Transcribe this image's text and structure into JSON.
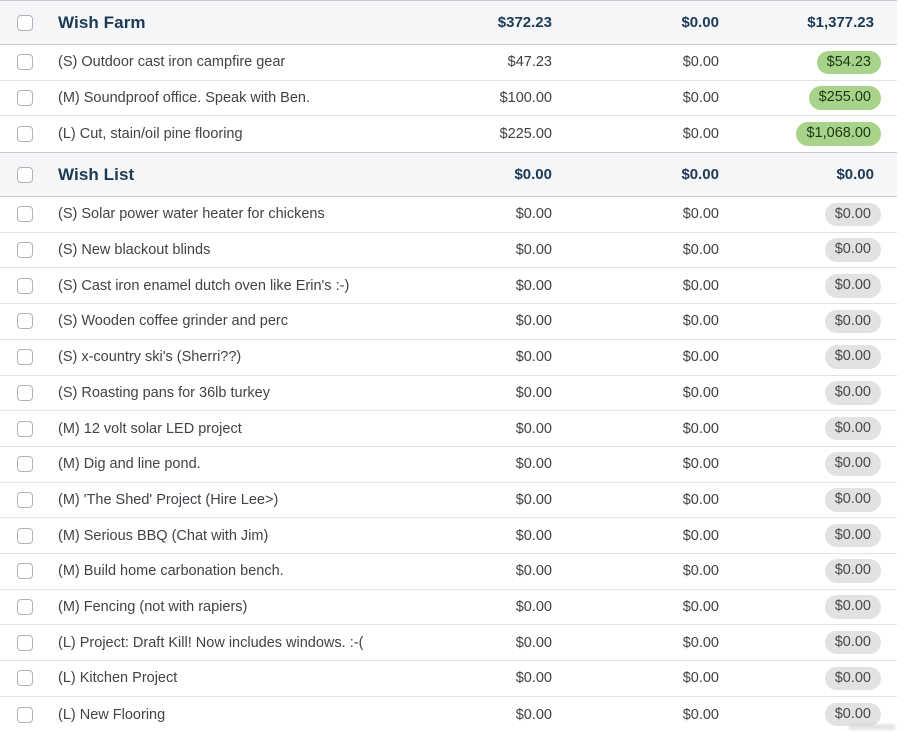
{
  "icons": {
    "collapse_arrow": "▼"
  },
  "colors": {
    "group_header_bg": "#f5f6f8",
    "group_header_text": "#1d3a55",
    "row_text": "#404347",
    "amount_text": "#3e4043",
    "available_pill_green_bg": "#a7d48a",
    "available_pill_green_text": "#1e3613",
    "available_pill_gray_bg": "#e2e2e4",
    "available_pill_gray_text": "#484848",
    "group_border": "#c7c9cd",
    "row_border": "#e0e2e5"
  },
  "groups": [
    {
      "name": "Wish Farm",
      "budgeted": "$372.23",
      "activity": "$0.00",
      "available": "$1,377.23",
      "rows": [
        {
          "name": "(S) Outdoor cast iron campfire gear",
          "budgeted": "$47.23",
          "activity": "$0.00",
          "available": "$54.23",
          "pill": "green"
        },
        {
          "name": "(M) Soundproof office. Speak with Ben.",
          "budgeted": "$100.00",
          "activity": "$0.00",
          "available": "$255.00",
          "pill": "green"
        },
        {
          "name": "(L) Cut, stain/oil pine flooring",
          "budgeted": "$225.00",
          "activity": "$0.00",
          "available": "$1,068.00",
          "pill": "green"
        }
      ]
    },
    {
      "name": "Wish List",
      "budgeted": "$0.00",
      "activity": "$0.00",
      "available": "$0.00",
      "rows": [
        {
          "name": "(S) Solar power water heater for chickens",
          "budgeted": "$0.00",
          "activity": "$0.00",
          "available": "$0.00",
          "pill": "gray"
        },
        {
          "name": "(S) New blackout blinds",
          "budgeted": "$0.00",
          "activity": "$0.00",
          "available": "$0.00",
          "pill": "gray"
        },
        {
          "name": "(S) Cast iron enamel dutch oven like Erin's :-)",
          "budgeted": "$0.00",
          "activity": "$0.00",
          "available": "$0.00",
          "pill": "gray"
        },
        {
          "name": "(S) Wooden coffee grinder and perc",
          "budgeted": "$0.00",
          "activity": "$0.00",
          "available": "$0.00",
          "pill": "gray"
        },
        {
          "name": "(S) x-country ski's (Sherri??)",
          "budgeted": "$0.00",
          "activity": "$0.00",
          "available": "$0.00",
          "pill": "gray"
        },
        {
          "name": "(S) Roasting pans for 36lb turkey",
          "budgeted": "$0.00",
          "activity": "$0.00",
          "available": "$0.00",
          "pill": "gray"
        },
        {
          "name": "(M) 12 volt solar LED project",
          "budgeted": "$0.00",
          "activity": "$0.00",
          "available": "$0.00",
          "pill": "gray"
        },
        {
          "name": "(M) Dig and line pond.",
          "budgeted": "$0.00",
          "activity": "$0.00",
          "available": "$0.00",
          "pill": "gray"
        },
        {
          "name": "(M) 'The Shed' Project (Hire Lee>)",
          "budgeted": "$0.00",
          "activity": "$0.00",
          "available": "$0.00",
          "pill": "gray"
        },
        {
          "name": "(M) Serious BBQ (Chat with Jim)",
          "budgeted": "$0.00",
          "activity": "$0.00",
          "available": "$0.00",
          "pill": "gray"
        },
        {
          "name": "(M) Build home carbonation bench.",
          "budgeted": "$0.00",
          "activity": "$0.00",
          "available": "$0.00",
          "pill": "gray"
        },
        {
          "name": "(M) Fencing (not with rapiers)",
          "budgeted": "$0.00",
          "activity": "$0.00",
          "available": "$0.00",
          "pill": "gray"
        },
        {
          "name": "(L) Project: Draft Kill! Now includes windows. :-(",
          "budgeted": "$0.00",
          "activity": "$0.00",
          "available": "$0.00",
          "pill": "gray"
        },
        {
          "name": "(L) Kitchen Project",
          "budgeted": "$0.00",
          "activity": "$0.00",
          "available": "$0.00",
          "pill": "gray"
        },
        {
          "name": "(L) New Flooring",
          "budgeted": "$0.00",
          "activity": "$0.00",
          "available": "$0.00",
          "pill": "gray"
        }
      ]
    }
  ]
}
